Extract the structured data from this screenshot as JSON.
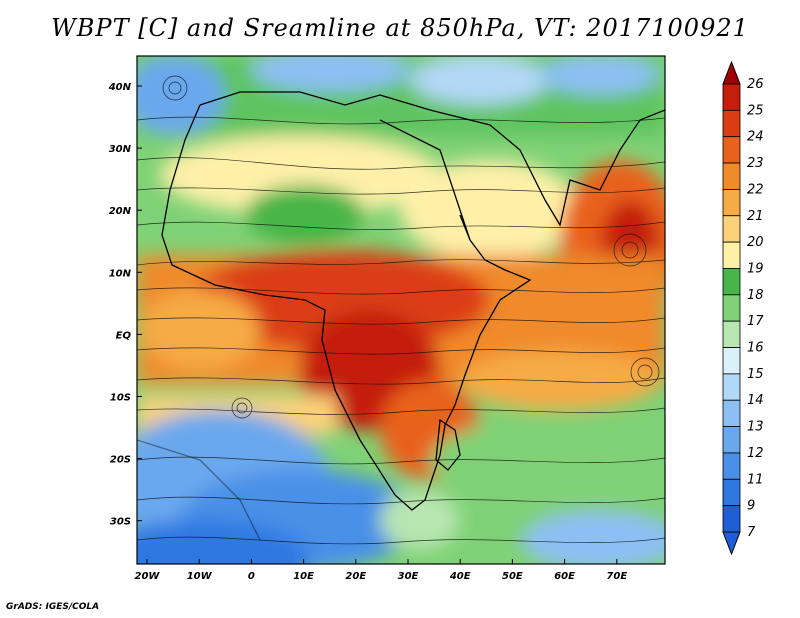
{
  "title": "WBPT [C] and Sreamline at 850hPa, VT: 2017100921",
  "credit": "GrADS: IGES/COLA",
  "map": {
    "lon_ticks": [
      "20W",
      "10W",
      "0",
      "10E",
      "20E",
      "30E",
      "40E",
      "50E",
      "60E",
      "70E"
    ],
    "lat_ticks": [
      "40N",
      "30N",
      "20N",
      "10N",
      "EQ",
      "10S",
      "20S",
      "30S"
    ]
  },
  "colorbar": {
    "levels": [
      "7",
      "9",
      "11",
      "12",
      "13",
      "14",
      "15",
      "16",
      "17",
      "18",
      "19",
      "20",
      "21",
      "22",
      "23",
      "24",
      "25",
      "26"
    ],
    "colors": [
      "#1e5fd6",
      "#2f78e2",
      "#4a90e8",
      "#6aa8ee",
      "#8cc0f4",
      "#b2d8f8",
      "#dcf0fa",
      "#b8e6b0",
      "#7fd276",
      "#47b547",
      "#fff0a8",
      "#fbd27a",
      "#f6ab45",
      "#f08a2a",
      "#e9621c",
      "#dc3c14",
      "#c41e0c",
      "#a00000"
    ]
  }
}
